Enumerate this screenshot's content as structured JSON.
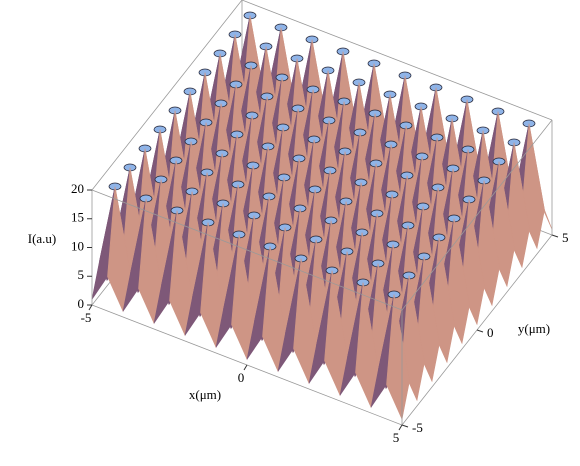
{
  "chart_data": {
    "type": "surface",
    "xlabel": "x(μm)",
    "ylabel": "y(μm)",
    "zlabel": "I(a.u)",
    "x": [
      -5,
      -4.5,
      -4,
      -3.5,
      -3,
      -2.5,
      -2,
      -1.5,
      -1,
      -0.5,
      0,
      0.5,
      1,
      1.5,
      2,
      2.5,
      3,
      3.5,
      4,
      4.5,
      5
    ],
    "y": [
      -5,
      -4.5,
      -4,
      -3.5,
      -3,
      -2.5,
      -2,
      -1.5,
      -1,
      -0.5,
      0,
      0.5,
      1,
      1.5,
      2,
      2.5,
      3,
      3.5,
      4,
      4.5,
      5
    ],
    "z": [
      [
        1,
        6,
        1,
        6,
        1,
        6,
        1,
        6,
        1,
        6,
        1,
        6,
        1,
        6,
        1,
        6,
        1,
        6,
        1,
        6,
        1
      ],
      [
        6,
        20,
        6,
        20,
        6,
        20,
        6,
        20,
        6,
        20,
        6,
        20,
        6,
        20,
        6,
        20,
        6,
        20,
        6,
        20,
        6
      ],
      [
        1,
        6,
        1,
        6,
        1,
        6,
        1,
        6,
        1,
        6,
        1,
        6,
        1,
        6,
        1,
        6,
        1,
        6,
        1,
        6,
        1
      ],
      [
        6,
        20,
        6,
        20,
        6,
        20,
        6,
        20,
        6,
        20,
        6,
        20,
        6,
        20,
        6,
        20,
        6,
        20,
        6,
        20,
        6
      ],
      [
        1,
        6,
        1,
        6,
        1,
        6,
        1,
        6,
        1,
        6,
        1,
        6,
        1,
        6,
        1,
        6,
        1,
        6,
        1,
        6,
        1
      ],
      [
        6,
        20,
        6,
        20,
        6,
        20,
        6,
        20,
        6,
        20,
        6,
        20,
        6,
        20,
        6,
        20,
        6,
        20,
        6,
        20,
        6
      ],
      [
        1,
        6,
        1,
        6,
        1,
        6,
        1,
        6,
        1,
        6,
        1,
        6,
        1,
        6,
        1,
        6,
        1,
        6,
        1,
        6,
        1
      ],
      [
        6,
        20,
        6,
        20,
        6,
        20,
        6,
        20,
        6,
        20,
        6,
        20,
        6,
        20,
        6,
        20,
        6,
        20,
        6,
        20,
        6
      ],
      [
        1,
        6,
        1,
        6,
        1,
        6,
        1,
        6,
        1,
        6,
        1,
        6,
        1,
        6,
        1,
        6,
        1,
        6,
        1,
        6,
        1
      ],
      [
        6,
        20,
        6,
        20,
        6,
        20,
        6,
        20,
        6,
        20,
        6,
        20,
        6,
        20,
        6,
        20,
        6,
        20,
        6,
        20,
        6
      ],
      [
        1,
        6,
        1,
        6,
        1,
        6,
        1,
        6,
        1,
        6,
        1,
        6,
        1,
        6,
        1,
        6,
        1,
        6,
        1,
        6,
        1
      ],
      [
        6,
        20,
        6,
        20,
        6,
        20,
        6,
        20,
        6,
        20,
        6,
        20,
        6,
        20,
        6,
        20,
        6,
        20,
        6,
        20,
        6
      ],
      [
        1,
        6,
        1,
        6,
        1,
        6,
        1,
        6,
        1,
        6,
        1,
        6,
        1,
        6,
        1,
        6,
        1,
        6,
        1,
        6,
        1
      ],
      [
        6,
        20,
        6,
        20,
        6,
        20,
        6,
        20,
        6,
        20,
        6,
        20,
        6,
        20,
        6,
        20,
        6,
        20,
        6,
        20,
        6
      ],
      [
        1,
        6,
        1,
        6,
        1,
        6,
        1,
        6,
        1,
        6,
        1,
        6,
        1,
        6,
        1,
        6,
        1,
        6,
        1,
        6,
        1
      ],
      [
        6,
        20,
        6,
        20,
        6,
        20,
        6,
        20,
        6,
        20,
        6,
        20,
        6,
        20,
        6,
        20,
        6,
        20,
        6,
        20,
        6
      ],
      [
        1,
        6,
        1,
        6,
        1,
        6,
        1,
        6,
        1,
        6,
        1,
        6,
        1,
        6,
        1,
        6,
        1,
        6,
        1,
        6,
        1
      ],
      [
        6,
        20,
        6,
        20,
        6,
        20,
        6,
        20,
        6,
        20,
        6,
        20,
        6,
        20,
        6,
        20,
        6,
        20,
        6,
        20,
        6
      ],
      [
        1,
        6,
        1,
        6,
        1,
        6,
        1,
        6,
        1,
        6,
        1,
        6,
        1,
        6,
        1,
        6,
        1,
        6,
        1,
        6,
        1
      ],
      [
        6,
        20,
        6,
        20,
        6,
        20,
        6,
        20,
        6,
        20,
        6,
        20,
        6,
        20,
        6,
        20,
        6,
        20,
        6,
        20,
        6
      ],
      [
        1,
        6,
        1,
        6,
        1,
        6,
        1,
        6,
        1,
        6,
        1,
        6,
        1,
        6,
        1,
        6,
        1,
        6,
        1,
        6,
        1
      ]
    ],
    "xlim": [
      -5,
      5
    ],
    "ylim": [
      -5,
      5
    ],
    "zlim": [
      0,
      20
    ],
    "xticks": [
      -5,
      0,
      5
    ],
    "yticks": [
      -5,
      0,
      5
    ],
    "zticks": [
      0,
      5,
      10,
      15,
      20
    ],
    "color_low": "#4e3470",
    "color_high": "#f7b48c",
    "cap_color": "#8fb4e8"
  }
}
